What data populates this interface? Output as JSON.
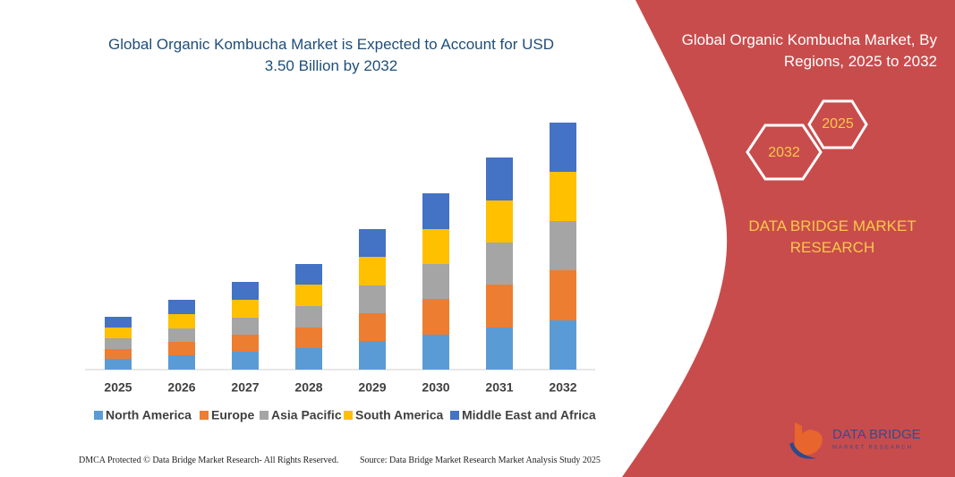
{
  "chart_data": {
    "type": "stacked-bar",
    "title": "Global Organic Kombucha Market is Expected to Account for USD 3.50 Billion by 2032",
    "categories": [
      "2025",
      "2026",
      "2027",
      "2028",
      "2029",
      "2030",
      "2031",
      "2032"
    ],
    "series": [
      {
        "name": "North America",
        "color": "#5b9bd5",
        "values": [
          12,
          16,
          20,
          24,
          32,
          39,
          47,
          55
        ]
      },
      {
        "name": "Europe",
        "color": "#ed7d31",
        "values": [
          11,
          15,
          19,
          23,
          31,
          40,
          48,
          56
        ]
      },
      {
        "name": "Asia Pacific",
        "color": "#a5a5a5",
        "values": [
          12,
          15,
          19,
          24,
          31,
          39,
          47,
          55
        ]
      },
      {
        "name": "South America",
        "color": "#ffc000",
        "values": [
          12,
          16,
          20,
          24,
          32,
          39,
          47,
          55
        ]
      },
      {
        "name": "Middle East and Africa",
        "color": "#4472c4",
        "values": [
          12,
          16,
          20,
          23,
          31,
          40,
          48,
          55
        ]
      }
    ]
  },
  "side_panel": {
    "title": "Global Organic Kombucha Market, By Regions, 2025 to 2032",
    "hexagons": [
      "2025",
      "2032"
    ],
    "brand": "DATA BRIDGE MARKET RESEARCH"
  },
  "logo": {
    "name": "DATA BRIDGE",
    "tagline": "MARKET RESEARCH"
  },
  "footer": {
    "left": "DMCA Protected © Data Bridge Market Research- All Rights Reserved.",
    "right": "Source: Data Bridge Market Research  Market Analysis Study 2025"
  }
}
